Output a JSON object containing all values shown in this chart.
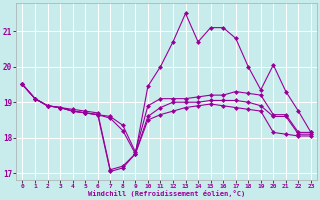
{
  "xlabel": "Windchill (Refroidissement éolien,°C)",
  "background_color": "#c8ecec",
  "line_color": "#990099",
  "grid_color": "#ffffff",
  "series": [
    {
      "x": [
        0,
        1,
        2,
        3,
        4,
        5,
        6,
        7,
        8,
        9,
        10,
        11,
        12,
        13,
        14,
        15,
        16,
        17,
        18,
        19,
        20,
        21,
        22,
        23
      ],
      "y": [
        19.5,
        19.1,
        18.9,
        18.85,
        18.8,
        18.75,
        18.7,
        17.1,
        17.2,
        17.55,
        19.45,
        20.0,
        20.7,
        21.5,
        20.7,
        21.1,
        21.1,
        20.8,
        20.0,
        19.35,
        20.05,
        19.3,
        18.75,
        18.15
      ]
    },
    {
      "x": [
        0,
        1,
        2,
        3,
        4,
        5,
        6,
        7,
        8,
        9,
        10,
        11,
        12,
        13,
        14,
        15,
        16,
        17,
        18,
        19,
        20,
        21,
        22,
        23
      ],
      "y": [
        19.5,
        19.1,
        18.9,
        18.85,
        18.75,
        18.7,
        18.65,
        18.6,
        18.35,
        17.6,
        18.9,
        19.1,
        19.1,
        19.1,
        19.15,
        19.2,
        19.2,
        19.3,
        19.25,
        19.2,
        18.65,
        18.65,
        18.15,
        18.15
      ]
    },
    {
      "x": [
        0,
        1,
        2,
        3,
        4,
        5,
        6,
        7,
        8,
        9,
        10,
        11,
        12,
        13,
        14,
        15,
        16,
        17,
        18,
        19,
        20,
        21,
        22,
        23
      ],
      "y": [
        19.5,
        19.1,
        18.9,
        18.85,
        18.75,
        18.7,
        18.65,
        18.55,
        18.2,
        17.55,
        18.6,
        18.85,
        19.0,
        19.0,
        19.0,
        19.05,
        19.05,
        19.05,
        19.0,
        18.9,
        18.6,
        18.6,
        18.1,
        18.1
      ]
    },
    {
      "x": [
        0,
        1,
        2,
        3,
        4,
        5,
        6,
        7,
        8,
        9,
        10,
        11,
        12,
        13,
        14,
        15,
        16,
        17,
        18,
        19,
        20,
        21,
        22,
        23
      ],
      "y": [
        19.5,
        19.1,
        18.9,
        18.85,
        18.75,
        18.7,
        18.65,
        17.05,
        17.15,
        17.55,
        18.5,
        18.65,
        18.75,
        18.85,
        18.9,
        18.95,
        18.9,
        18.85,
        18.8,
        18.75,
        18.15,
        18.1,
        18.05,
        18.05
      ]
    }
  ],
  "ylim": [
    16.8,
    21.8
  ],
  "xlim": [
    -0.5,
    23.5
  ],
  "yticks": [
    17,
    18,
    19,
    20,
    21
  ],
  "xticks": [
    0,
    1,
    2,
    3,
    4,
    5,
    6,
    7,
    8,
    9,
    10,
    11,
    12,
    13,
    14,
    15,
    16,
    17,
    18,
    19,
    20,
    21,
    22,
    23
  ],
  "marker": "D",
  "markersize": 2,
  "linewidth": 0.8
}
